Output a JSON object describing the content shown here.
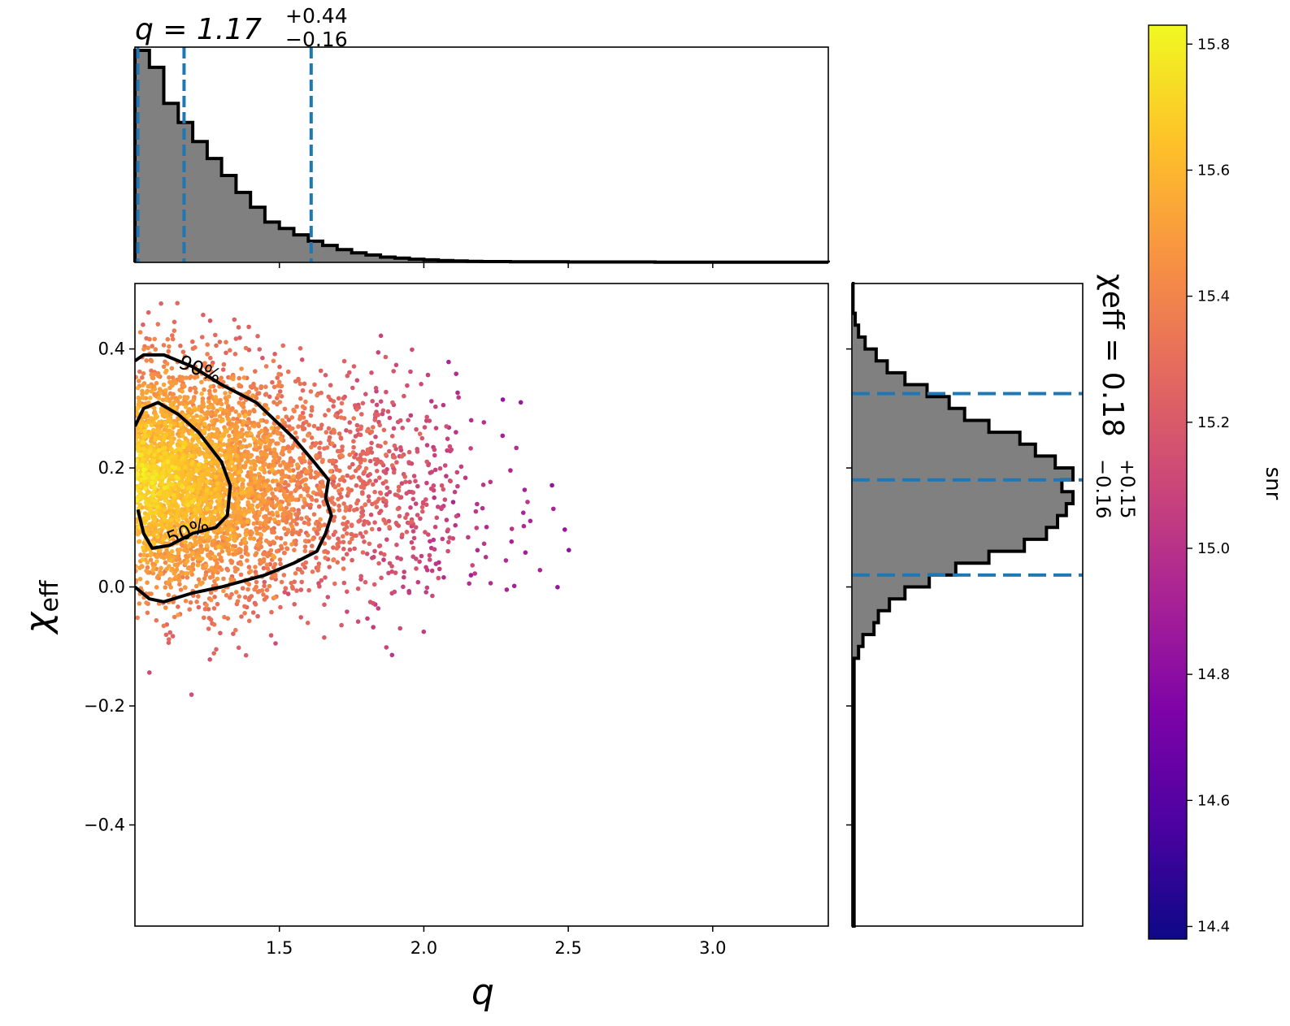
{
  "chart_data": {
    "type": "scatter",
    "title": "",
    "top_title": {
      "main": "q = 1.17",
      "plus": "+0.44",
      "minus": "−0.16"
    },
    "right_title": {
      "main": "χeff = 0.18",
      "plus": "+0.15",
      "minus": "−0.16"
    },
    "xlabel": "q",
    "ylabel": "χeff",
    "ylabel_main": "χ",
    "ylabel_sub": "eff",
    "xlim": [
      1.0,
      3.4
    ],
    "ylim": [
      -0.57,
      0.51
    ],
    "xticks": [
      "1.5",
      "2.0",
      "2.5",
      "3.0"
    ],
    "xtick_values": [
      1.5,
      2.0,
      2.5,
      3.0
    ],
    "yticks": [
      "−0.4",
      "−0.2",
      "0.0",
      "0.2",
      "0.4"
    ],
    "ytick_values": [
      -0.4,
      -0.2,
      0.0,
      0.2,
      0.4
    ],
    "colorbar": {
      "label": "snr",
      "range": [
        14.38,
        15.83
      ],
      "ticks": [
        "14.4",
        "14.6",
        "14.8",
        "15.0",
        "15.2",
        "15.4",
        "15.6",
        "15.8"
      ],
      "tick_values": [
        14.4,
        14.6,
        14.8,
        15.0,
        15.2,
        15.4,
        15.6,
        15.8
      ],
      "colormap": "plasma"
    },
    "contours": [
      {
        "label": "90%",
        "points": [
          [
            1.0,
            0.38
          ],
          [
            1.03,
            0.39
          ],
          [
            1.1,
            0.39
          ],
          [
            1.2,
            0.37
          ],
          [
            1.3,
            0.34
          ],
          [
            1.42,
            0.31
          ],
          [
            1.55,
            0.25
          ],
          [
            1.62,
            0.21
          ],
          [
            1.67,
            0.18
          ],
          [
            1.66,
            0.15
          ],
          [
            1.68,
            0.12
          ],
          [
            1.66,
            0.09
          ],
          [
            1.63,
            0.06
          ],
          [
            1.55,
            0.04
          ],
          [
            1.45,
            0.02
          ],
          [
            1.3,
            0.0
          ],
          [
            1.2,
            -0.01
          ],
          [
            1.1,
            -0.025
          ],
          [
            1.05,
            -0.02
          ],
          [
            1.0,
            0.0
          ]
        ]
      },
      {
        "label": "50%",
        "points": [
          [
            1.0,
            0.27
          ],
          [
            1.03,
            0.3
          ],
          [
            1.08,
            0.31
          ],
          [
            1.15,
            0.29
          ],
          [
            1.22,
            0.26
          ],
          [
            1.3,
            0.21
          ],
          [
            1.33,
            0.17
          ],
          [
            1.32,
            0.12
          ],
          [
            1.28,
            0.1
          ],
          [
            1.2,
            0.09
          ],
          [
            1.12,
            0.07
          ],
          [
            1.06,
            0.065
          ],
          [
            1.03,
            0.09
          ],
          [
            1.01,
            0.13
          ]
        ]
      }
    ],
    "q_histogram": {
      "bin_edges": [
        1.0,
        1.05,
        1.1,
        1.15,
        1.2,
        1.25,
        1.3,
        1.35,
        1.4,
        1.45,
        1.5,
        1.55,
        1.6,
        1.65,
        1.7,
        1.75,
        1.8,
        1.85,
        1.9,
        1.95,
        2.0,
        2.05,
        2.1,
        2.15,
        2.2,
        2.3,
        2.5,
        2.8,
        3.4
      ],
      "counts": [
        1.0,
        0.92,
        0.75,
        0.66,
        0.57,
        0.49,
        0.41,
        0.33,
        0.26,
        0.19,
        0.16,
        0.13,
        0.1,
        0.08,
        0.06,
        0.045,
        0.035,
        0.025,
        0.02,
        0.015,
        0.012,
        0.009,
        0.007,
        0.005,
        0.004,
        0.003,
        0.002,
        0.001
      ],
      "lines": [
        1.01,
        1.17,
        1.61
      ]
    },
    "chi_histogram": {
      "bin_edges": [
        -0.57,
        -0.12,
        -0.1,
        -0.08,
        -0.06,
        -0.04,
        -0.02,
        0.0,
        0.02,
        0.04,
        0.06,
        0.08,
        0.1,
        0.12,
        0.14,
        0.16,
        0.18,
        0.2,
        0.22,
        0.24,
        0.26,
        0.28,
        0.3,
        0.32,
        0.34,
        0.36,
        0.38,
        0.4,
        0.42,
        0.44,
        0.46,
        0.51
      ],
      "counts": [
        0.01,
        0.03,
        0.05,
        0.1,
        0.12,
        0.17,
        0.24,
        0.35,
        0.47,
        0.62,
        0.78,
        0.88,
        0.93,
        0.97,
        1.0,
        0.95,
        1.0,
        0.92,
        0.83,
        0.76,
        0.62,
        0.51,
        0.44,
        0.34,
        0.24,
        0.16,
        0.11,
        0.06,
        0.03,
        0.015,
        0.005
      ],
      "lines": [
        0.02,
        0.18,
        0.325
      ]
    },
    "annotations": [
      "90%",
      "50%"
    ]
  }
}
